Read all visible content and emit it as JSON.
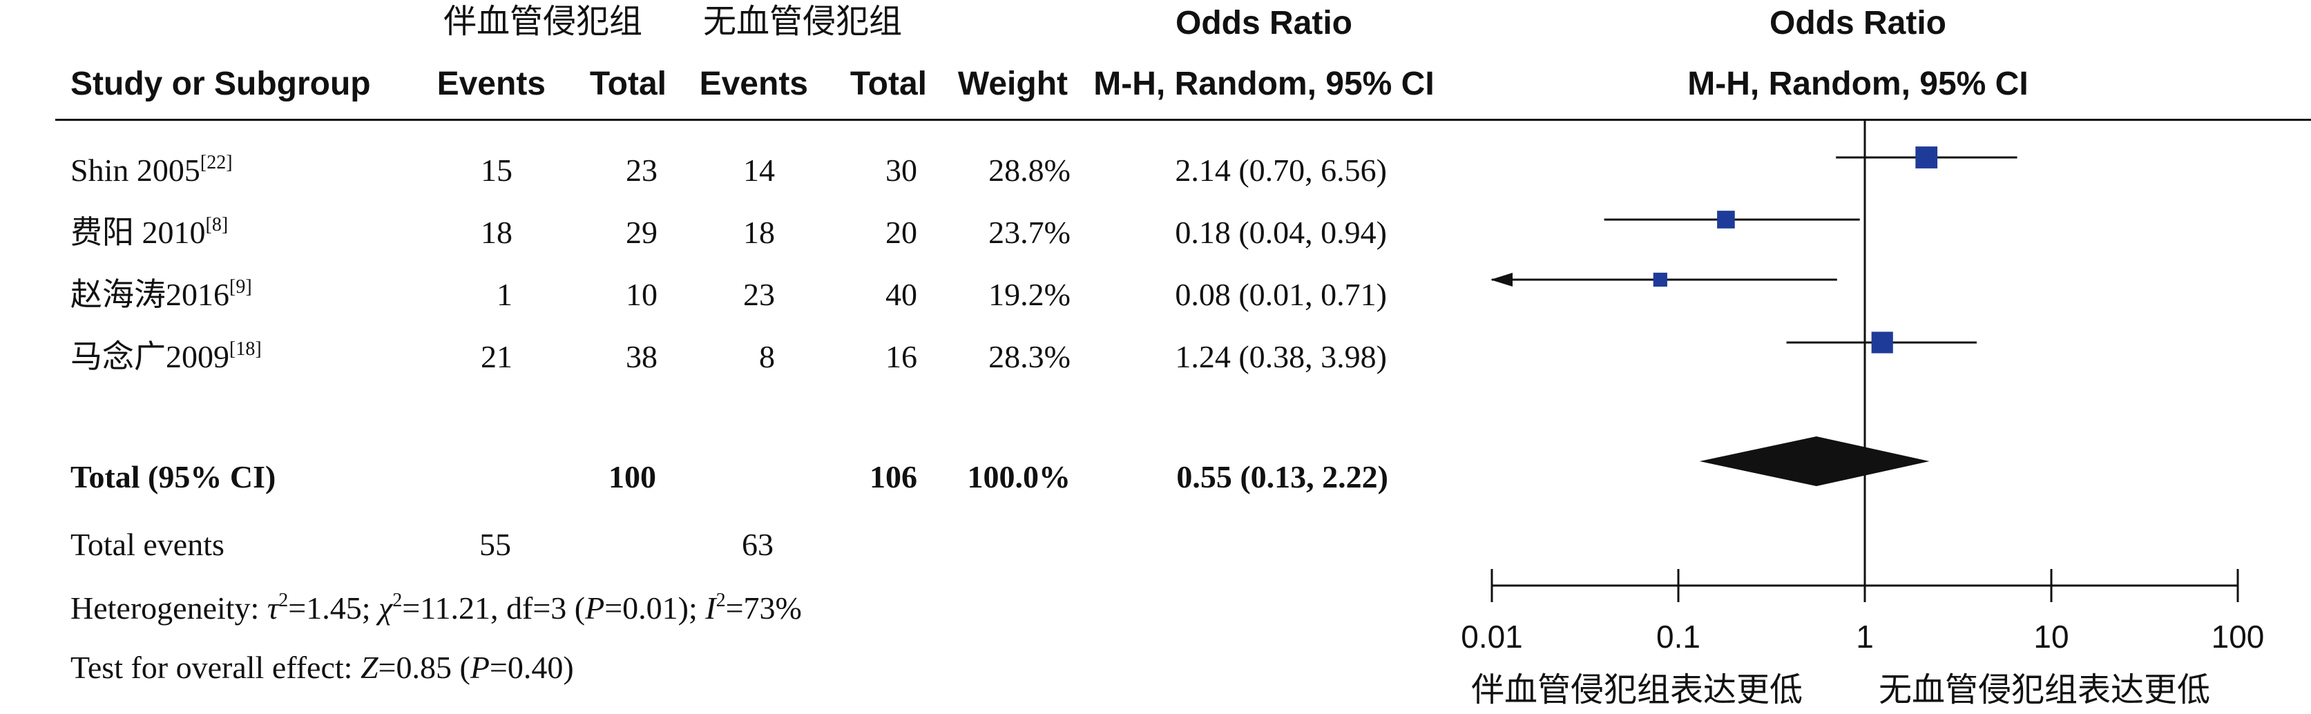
{
  "header": {
    "group1": "伴血管侵犯组",
    "group2": "无血管侵犯组",
    "or_title": "Odds Ratio",
    "or_title_plot": "Odds Ratio",
    "study_col": "Study or Subgroup",
    "events1": "Events",
    "total1": "Total",
    "events2": "Events",
    "total2": "Total",
    "weight": "Weight",
    "method": "M-H, Random, 95% CI",
    "method_plot": "M-H, Random, 95% CI"
  },
  "studies": [
    {
      "name": "Shin 2005",
      "ref": "[22]",
      "e1": "15",
      "t1": "23",
      "e2": "14",
      "t2": "30",
      "weight": "28.8%",
      "ci": "2.14 (0.70, 6.56)"
    },
    {
      "name": "费阳 2010",
      "ref": "[8]",
      "e1": "18",
      "t1": "29",
      "e2": "18",
      "t2": "20",
      "weight": "23.7%",
      "ci": "0.18 (0.04, 0.94)"
    },
    {
      "name": "赵海涛2016",
      "ref": "[9]",
      "e1": "1",
      "t1": "10",
      "e2": "23",
      "t2": "40",
      "weight": "19.2%",
      "ci": "0.08 (0.01, 0.71)"
    },
    {
      "name": "马念广2009",
      "ref": "[18]",
      "e1": "21",
      "t1": "38",
      "e2": "8",
      "t2": "16",
      "weight": "28.3%",
      "ci": "1.24 (0.38, 3.98)"
    }
  ],
  "total": {
    "label": "Total (95% CI)",
    "t1": "100",
    "t2": "106",
    "weight": "100.0%",
    "ci": "0.55 (0.13, 2.22)"
  },
  "total_events": {
    "label": "Total events",
    "e1": "55",
    "e2": "63"
  },
  "heterogeneity": {
    "prefix": "Heterogeneity: ",
    "tau_sym": "τ",
    "tau": "=1.45; ",
    "chi_sym": "χ",
    "chi": "=11.21, df=3 (",
    "p_sym": "P",
    "p": "=0.01); ",
    "i_sym": "I",
    "i": "=73%"
  },
  "overall": {
    "prefix": "Test for overall effect: ",
    "z_sym": "Z",
    "z": "=0.85 (",
    "p_sym": "P",
    "p": "=0.40)"
  },
  "axis_labels": {
    "left": "伴血管侵犯组表达更低",
    "right": "无血管侵犯组表达更低"
  },
  "chart_data": {
    "type": "forest",
    "scale": "log",
    "xlim": [
      0.01,
      100
    ],
    "ticks": [
      0.01,
      0.1,
      1,
      10,
      100
    ],
    "tick_labels": [
      "0.01",
      "0.1",
      "1",
      "10",
      "100"
    ],
    "null_line": 1,
    "marker_color": "#1f3b99",
    "diamond_color": "#111111",
    "studies": [
      {
        "or": 2.14,
        "lo": 0.7,
        "hi": 6.56,
        "weight": 28.8
      },
      {
        "or": 0.18,
        "lo": 0.04,
        "hi": 0.94,
        "weight": 23.7
      },
      {
        "or": 0.08,
        "lo": 0.01,
        "hi": 0.71,
        "weight": 19.2
      },
      {
        "or": 1.24,
        "lo": 0.38,
        "hi": 3.98,
        "weight": 28.3
      }
    ],
    "pooled": {
      "or": 0.55,
      "lo": 0.13,
      "hi": 2.22
    }
  }
}
